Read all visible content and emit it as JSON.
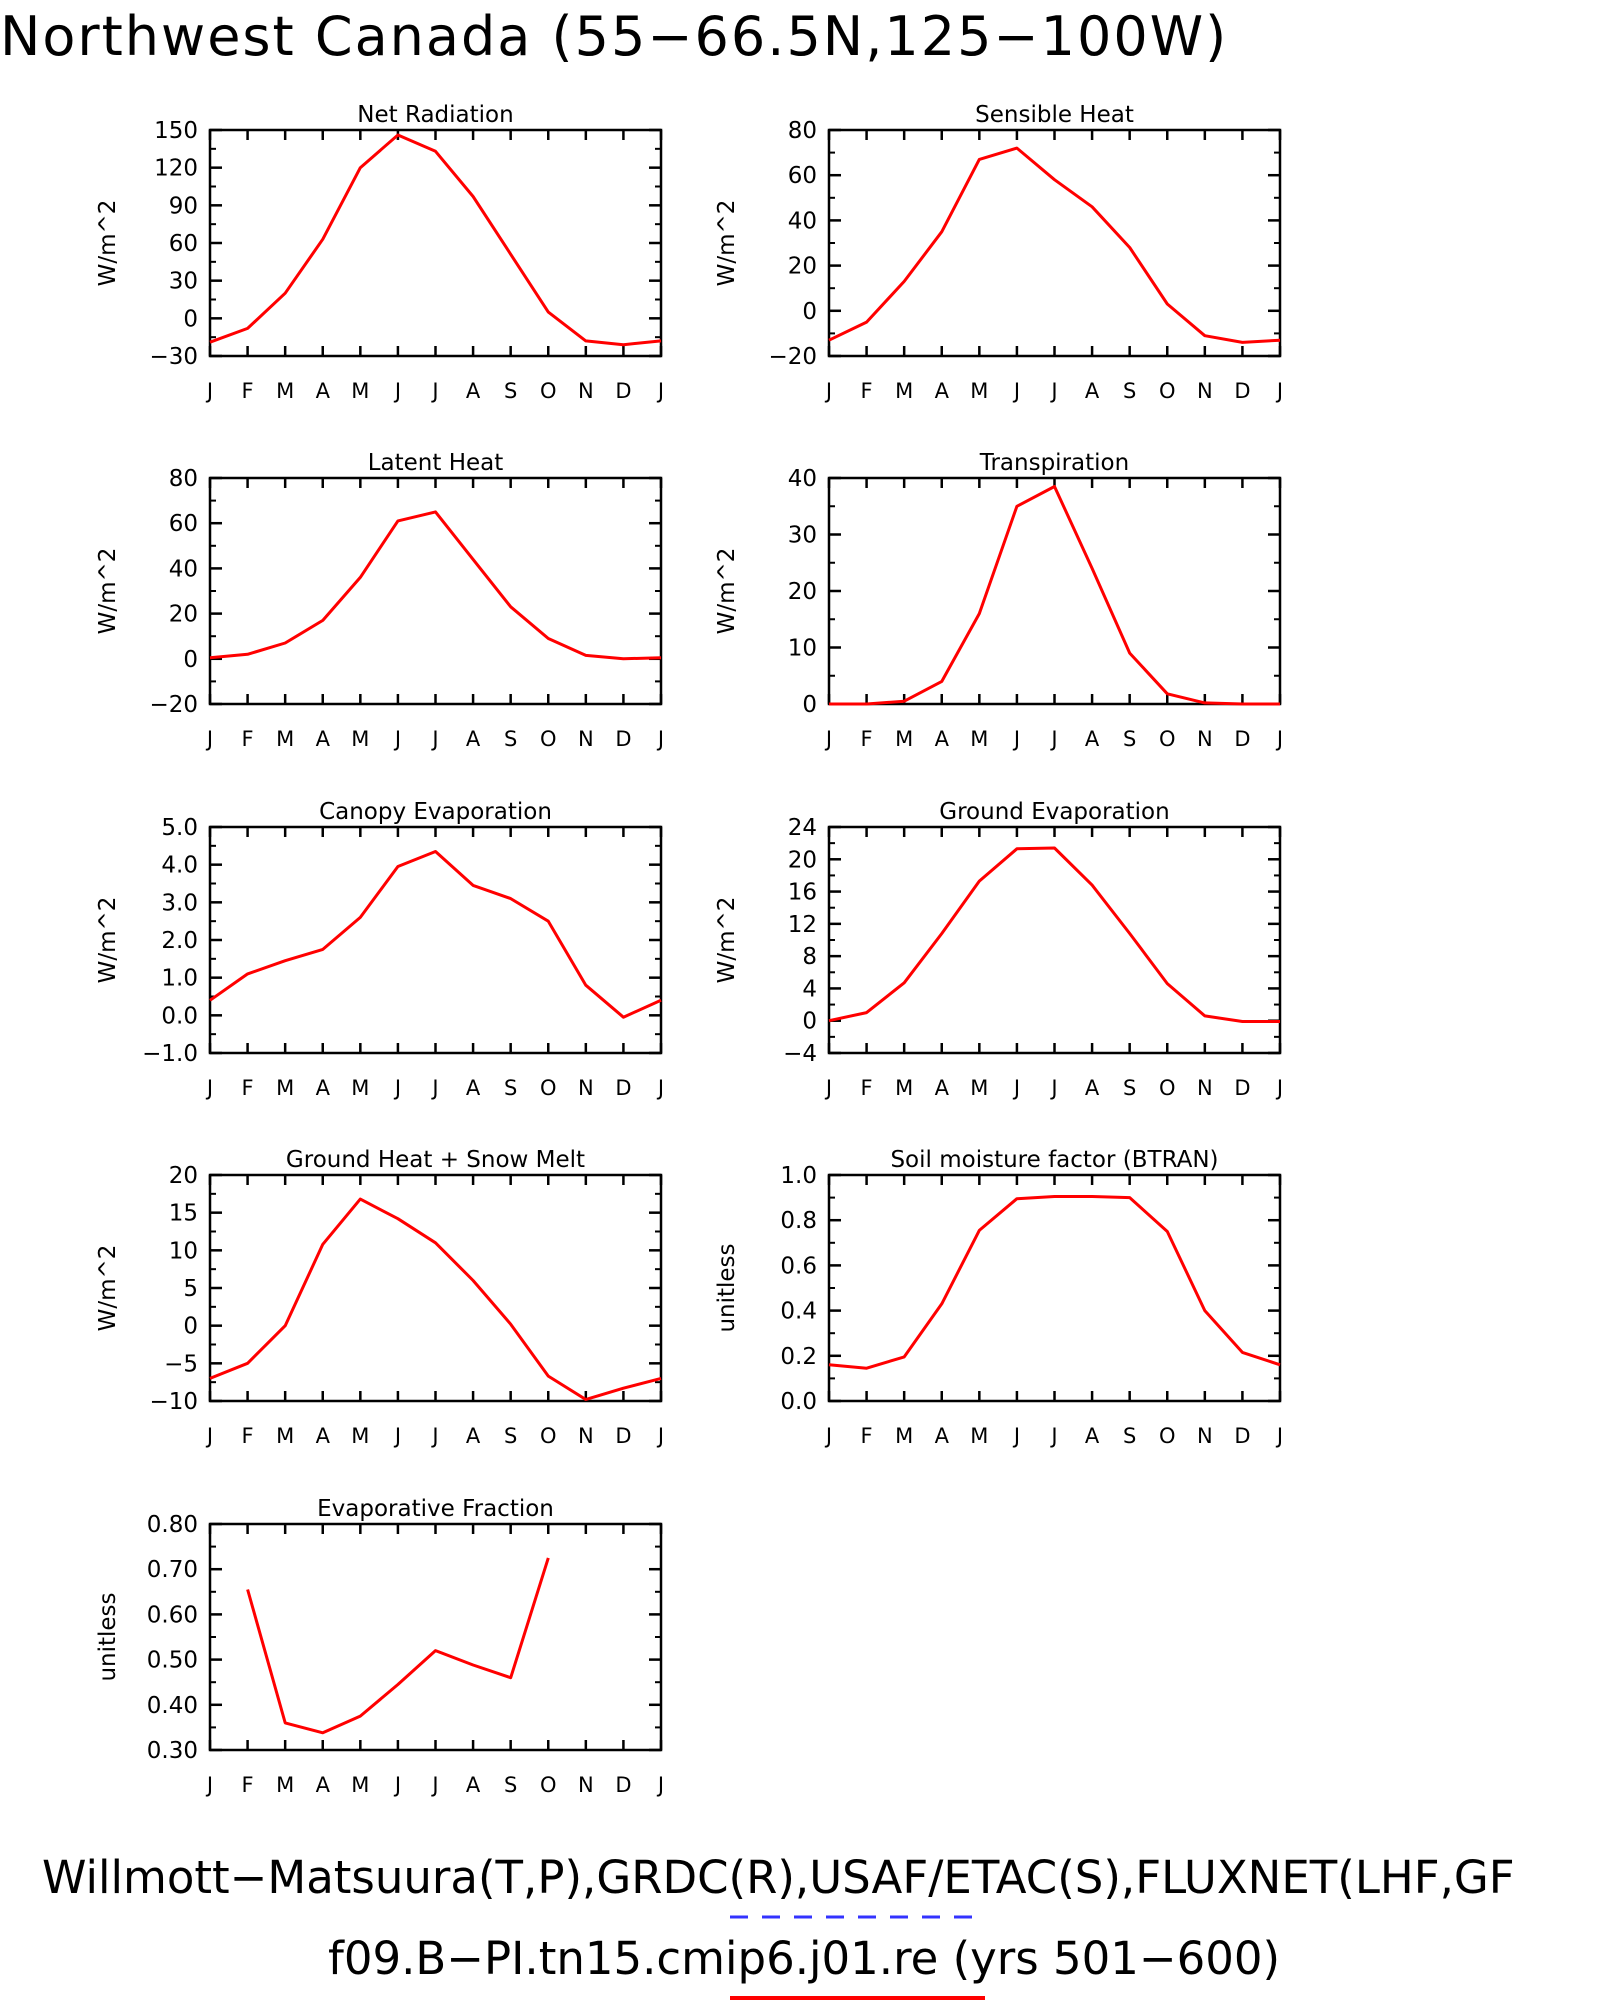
{
  "figure": {
    "title": "Northwest Canada (55−66.5N,125−100W)",
    "footer_line1": "Willmott−Matsuura(T,P),GRDC(R),USAF/ETAC(S),FLUXNET(LHF,GF",
    "footer_line2": "f09.B−PI.tn15.cmip6.j01.re (yrs 501−600)",
    "colors": {
      "model_line": "#ff0000",
      "obs_line": "#3333ff",
      "axes": "#000000"
    }
  },
  "chart_data": [
    {
      "type": "line",
      "title": "Net Radiation",
      "ylabel": "W/m^2",
      "categories": [
        "J",
        "F",
        "M",
        "A",
        "M",
        "J",
        "J",
        "A",
        "S",
        "O",
        "N",
        "D",
        "J"
      ],
      "ylim": [
        -30,
        150
      ],
      "yticks": [
        -30,
        0,
        30,
        60,
        90,
        120,
        150
      ],
      "ytick_labels": [
        "−30",
        "0",
        "30",
        "60",
        "90",
        "120",
        "150"
      ],
      "values": [
        -19,
        -8,
        20,
        63,
        120,
        146,
        133,
        97,
        51,
        5,
        -18,
        -21,
        -18
      ]
    },
    {
      "type": "line",
      "title": "Sensible Heat",
      "ylabel": "W/m^2",
      "categories": [
        "J",
        "F",
        "M",
        "A",
        "M",
        "J",
        "J",
        "A",
        "S",
        "O",
        "N",
        "D",
        "J"
      ],
      "ylim": [
        -20,
        80
      ],
      "yticks": [
        -20,
        0,
        20,
        40,
        60,
        80
      ],
      "ytick_labels": [
        "−20",
        "0",
        "20",
        "40",
        "60",
        "80"
      ],
      "values": [
        -13,
        -5,
        13,
        35,
        67,
        72,
        58,
        46,
        28,
        3,
        -11,
        -14,
        -13
      ]
    },
    {
      "type": "line",
      "title": "Latent Heat",
      "ylabel": "W/m^2",
      "categories": [
        "J",
        "F",
        "M",
        "A",
        "M",
        "J",
        "J",
        "A",
        "S",
        "O",
        "N",
        "D",
        "J"
      ],
      "ylim": [
        -20,
        80
      ],
      "yticks": [
        -20,
        0,
        20,
        40,
        60,
        80
      ],
      "ytick_labels": [
        "−20",
        "0",
        "20",
        "40",
        "60",
        "80"
      ],
      "values": [
        0.5,
        2,
        7,
        17,
        36,
        61,
        65,
        44,
        23,
        9,
        1.5,
        0,
        0.5
      ]
    },
    {
      "type": "line",
      "title": "Transpiration",
      "ylabel": "W/m^2",
      "categories": [
        "J",
        "F",
        "M",
        "A",
        "M",
        "J",
        "J",
        "A",
        "S",
        "O",
        "N",
        "D",
        "J"
      ],
      "ylim": [
        0,
        40
      ],
      "yticks": [
        0,
        10,
        20,
        30,
        40
      ],
      "ytick_labels": [
        "0",
        "10",
        "20",
        "30",
        "40"
      ],
      "values": [
        0,
        0,
        0.5,
        4,
        16,
        35,
        38.5,
        24,
        9,
        1.8,
        0.2,
        0,
        0
      ]
    },
    {
      "type": "line",
      "title": "Canopy Evaporation",
      "ylabel": "W/m^2",
      "categories": [
        "J",
        "F",
        "M",
        "A",
        "M",
        "J",
        "J",
        "A",
        "S",
        "O",
        "N",
        "D",
        "J"
      ],
      "ylim": [
        -1,
        5
      ],
      "yticks": [
        -1,
        0,
        1,
        2,
        3,
        4,
        5
      ],
      "ytick_labels": [
        "−1.0",
        "0.0",
        "1.0",
        "2.0",
        "3.0",
        "4.0",
        "5.0"
      ],
      "values": [
        0.4,
        1.1,
        1.45,
        1.75,
        2.6,
        3.95,
        4.35,
        3.45,
        3.1,
        2.5,
        0.8,
        -0.05,
        0.4
      ]
    },
    {
      "type": "line",
      "title": "Ground Evaporation",
      "ylabel": "W/m^2",
      "categories": [
        "J",
        "F",
        "M",
        "A",
        "M",
        "J",
        "J",
        "A",
        "S",
        "O",
        "N",
        "D",
        "J"
      ],
      "ylim": [
        -4,
        24
      ],
      "yticks": [
        -4,
        0,
        4,
        8,
        12,
        16,
        20,
        24
      ],
      "ytick_labels": [
        "−4",
        "0",
        "4",
        "8",
        "12",
        "16",
        "20",
        "24"
      ],
      "values": [
        0,
        1,
        4.7,
        10.8,
        17.3,
        21.3,
        21.4,
        16.8,
        10.8,
        4.6,
        0.6,
        -0.1,
        -0.1
      ]
    },
    {
      "type": "line",
      "title": "Ground Heat + Snow Melt",
      "ylabel": "W/m^2",
      "categories": [
        "J",
        "F",
        "M",
        "A",
        "M",
        "J",
        "J",
        "A",
        "S",
        "O",
        "N",
        "D",
        "J"
      ],
      "ylim": [
        -10,
        20
      ],
      "yticks": [
        -10,
        -5,
        0,
        5,
        10,
        15,
        20
      ],
      "ytick_labels": [
        "−10",
        "−5",
        "0",
        "5",
        "10",
        "15",
        "20"
      ],
      "values": [
        -7,
        -5,
        0,
        10.8,
        16.8,
        14.2,
        11,
        6,
        0.2,
        -6.7,
        -9.8,
        -8.3,
        -7
      ]
    },
    {
      "type": "line",
      "title": "Soil moisture factor (BTRAN)",
      "ylabel": "unitless",
      "categories": [
        "J",
        "F",
        "M",
        "A",
        "M",
        "J",
        "J",
        "A",
        "S",
        "O",
        "N",
        "D",
        "J"
      ],
      "ylim": [
        0,
        1
      ],
      "yticks": [
        0,
        0.2,
        0.4,
        0.6,
        0.8,
        1.0
      ],
      "ytick_labels": [
        "0.0",
        "0.2",
        "0.4",
        "0.6",
        "0.8",
        "1.0"
      ],
      "values": [
        0.16,
        0.145,
        0.195,
        0.43,
        0.755,
        0.895,
        0.905,
        0.905,
        0.9,
        0.75,
        0.4,
        0.215,
        0.16
      ]
    },
    {
      "type": "line",
      "title": "Evaporative Fraction",
      "ylabel": "unitless",
      "categories": [
        "J",
        "F",
        "M",
        "A",
        "M",
        "J",
        "J",
        "A",
        "S",
        "O",
        "N",
        "D",
        "J"
      ],
      "ylim": [
        0.3,
        0.8
      ],
      "yticks": [
        0.3,
        0.4,
        0.5,
        0.6,
        0.7,
        0.8
      ],
      "ytick_labels": [
        "0.30",
        "0.40",
        "0.50",
        "0.60",
        "0.70",
        "0.80"
      ],
      "values": [
        null,
        0.655,
        0.36,
        0.338,
        0.375,
        0.445,
        0.52,
        0.488,
        0.46,
        0.725,
        null,
        null,
        null
      ]
    }
  ]
}
